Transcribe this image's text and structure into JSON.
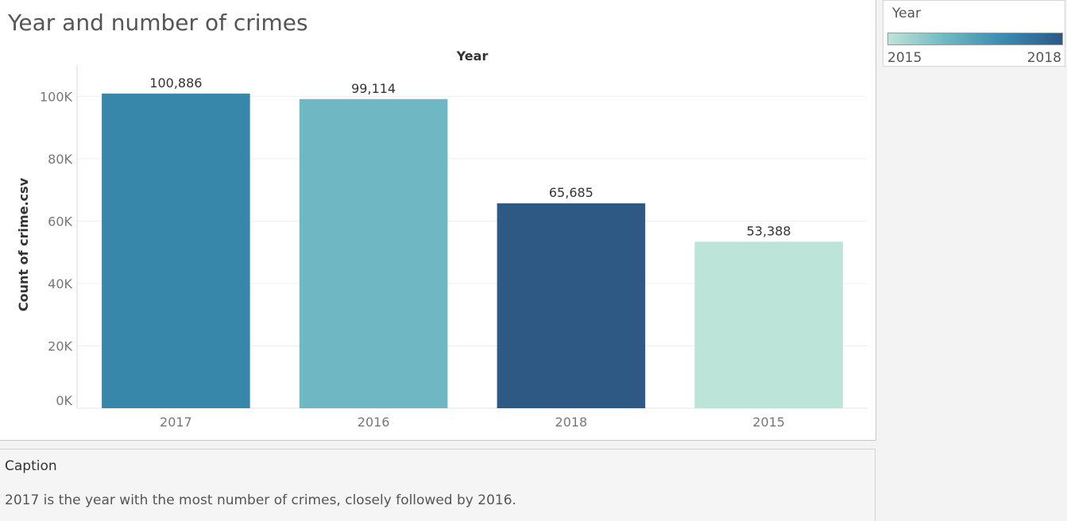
{
  "title": "Year and number of crimes",
  "legend": {
    "title": "Year",
    "min_label": "2015",
    "max_label": "2018",
    "gradient_colors": [
      "#bde4d9",
      "#6fb7c3",
      "#3a8ab0",
      "#2d5886"
    ]
  },
  "caption": {
    "title": "Caption",
    "text": "2017 is the year with the most number of crimes, closely followed by 2016."
  },
  "chart_data": {
    "type": "bar",
    "title": "Year and number of crimes",
    "xlabel": "Year",
    "ylabel": "Count of crime.csv",
    "categories": [
      "2017",
      "2016",
      "2018",
      "2015"
    ],
    "values": [
      100886,
      99114,
      65685,
      53388
    ],
    "value_labels": [
      "100,886",
      "99,114",
      "65,685",
      "53,388"
    ],
    "colors": [
      "#3787ab",
      "#6fb7c3",
      "#2e5985",
      "#bde4d9"
    ],
    "ylim": [
      0,
      110000
    ],
    "yticks": [
      0,
      20000,
      40000,
      60000,
      80000,
      100000
    ],
    "ytick_labels": [
      "0K",
      "20K",
      "40K",
      "60K",
      "80K",
      "100K"
    ],
    "grid": true,
    "legend_position": "top-right"
  }
}
